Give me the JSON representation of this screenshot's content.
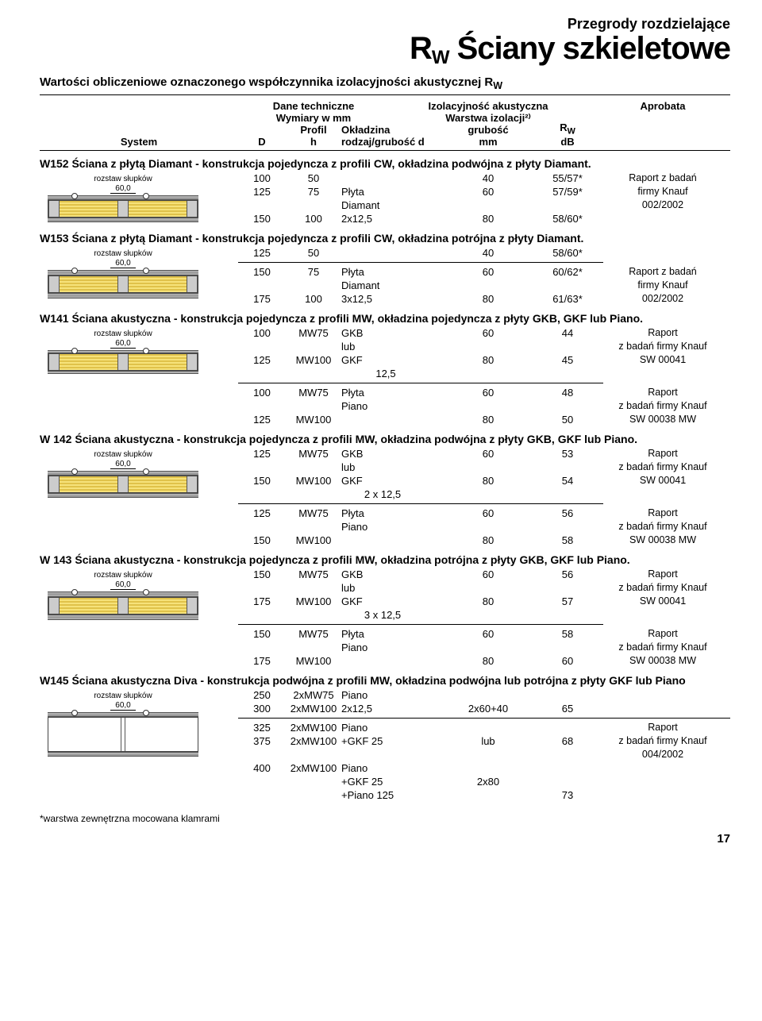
{
  "header": {
    "category": "Przegrody rozdzielające",
    "title_prefix": "R",
    "title_sub": "W",
    "title_main": " Ściany szkieletowe"
  },
  "intro": "Wartości obliczeniowe oznaczonego współczynnika izolacyjności akustycznej R",
  "intro_sub": "W",
  "columns": {
    "system": "System",
    "dane": "Dane techniczne",
    "izol": "Izolacyjność akustyczna",
    "apr": "Aprobata",
    "wymiary": "Wymiary w mm",
    "warstwa": "Warstwa izolacji²⁾",
    "D": "D",
    "profil": "Profil",
    "h": "h",
    "okladzina": "Okładzina",
    "rodzaj": "rodzaj/grubość d",
    "grubosc": "grubość",
    "mm": "mm",
    "rw": "R",
    "rw_sub": "W",
    "db": "dB"
  },
  "diag": {
    "rozstaw": "rozstaw słupków",
    "sixty": "60,0"
  },
  "sections": [
    {
      "title": "W152 Ściana z płytą Diamant - konstrukcja pojedyncza z profili CW, okładzina podwójna z płyty Diamant.",
      "skin": 2,
      "rows": [
        {
          "D": "100",
          "h": "50",
          "sh": "",
          "mm": "40",
          "rw": "55/57*",
          "ap": "Raport z badań"
        },
        {
          "D": "125",
          "h": "75",
          "sh": "Płyta",
          "mm": "60",
          "rw": "57/59*",
          "ap": "firmy Knauf"
        },
        {
          "D": "",
          "h": "",
          "sh": "Diamant",
          "mm": "",
          "rw": "",
          "ap": "002/2002"
        },
        {
          "D": "150",
          "h": "100",
          "sh": "2x12,5",
          "mm": "80",
          "rw": "58/60*",
          "ap": ""
        }
      ]
    },
    {
      "title": "W153 Ściana z płytą Diamant - konstrukcja pojedyncza z profili CW, okładzina potrójna z płyty Diamant.",
      "skin": 3,
      "rows": [
        {
          "D": "125",
          "h": "50",
          "sh": "",
          "mm": "40",
          "rw": "58/60*",
          "ap": ""
        },
        {
          "sep": true
        },
        {
          "D": "150",
          "h": "75",
          "sh": "Płyta",
          "mm": "60",
          "rw": "60/62*",
          "ap": "Raport z badań"
        },
        {
          "D": "",
          "h": "",
          "sh": "Diamant",
          "mm": "",
          "rw": "",
          "ap": "firmy Knauf"
        },
        {
          "D": "175",
          "h": "100",
          "sh": "3x12,5",
          "mm": "80",
          "rw": "61/63*",
          "ap": "002/2002"
        }
      ]
    },
    {
      "title": "W141 Ściana akustyczna - konstrukcja pojedyncza z profili MW, okładzina pojedyncza z płyty GKB, GKF lub Piano.",
      "skin": 1,
      "rows": [
        {
          "D": "100",
          "h": "MW75",
          "sh": "GKB",
          "mm": "60",
          "rw": "44",
          "ap": "Raport"
        },
        {
          "D": "",
          "h": "",
          "sh": "lub",
          "mm": "",
          "rw": "",
          "ap": "z badań firmy Knauf"
        },
        {
          "D": "125",
          "h": "MW100",
          "sh": "GKF",
          "mm": "80",
          "rw": "45",
          "ap": "SW 00041"
        },
        {
          "D": "",
          "h": "",
          "sh": "            12,5",
          "mm": "",
          "rw": "",
          "ap": ""
        },
        {
          "sep": true
        },
        {
          "D": "100",
          "h": "MW75",
          "sh": "Płyta",
          "mm": "60",
          "rw": "48",
          "ap": "Raport"
        },
        {
          "D": "",
          "h": "",
          "sh": "Piano",
          "mm": "",
          "rw": "",
          "ap": "z badań firmy Knauf"
        },
        {
          "D": "125",
          "h": "MW100",
          "sh": "",
          "mm": "80",
          "rw": "50",
          "ap": "SW 00038 MW"
        }
      ]
    },
    {
      "title": "W 142 Ściana akustyczna - konstrukcja pojedyncza z profili MW, okładzina podwójna z płyty GKB, GKF lub Piano.",
      "skin": 2,
      "rows": [
        {
          "D": "125",
          "h": "MW75",
          "sh": "GKB",
          "mm": "60",
          "rw": "53",
          "ap": "Raport"
        },
        {
          "D": "",
          "h": "",
          "sh": "lub",
          "mm": "",
          "rw": "",
          "ap": "z badań firmy Knauf"
        },
        {
          "D": "150",
          "h": "MW100",
          "sh": "GKF",
          "mm": "80",
          "rw": "54",
          "ap": "SW 00041"
        },
        {
          "D": "",
          "h": "",
          "sh": "        2 x 12,5",
          "mm": "",
          "rw": "",
          "ap": ""
        },
        {
          "sep": true
        },
        {
          "D": "125",
          "h": "MW75",
          "sh": "Płyta",
          "mm": "60",
          "rw": "56",
          "ap": "Raport"
        },
        {
          "D": "",
          "h": "",
          "sh": "Piano",
          "mm": "",
          "rw": "",
          "ap": "z badań firmy Knauf"
        },
        {
          "D": "150",
          "h": "MW100",
          "sh": "",
          "mm": "80",
          "rw": "58",
          "ap": "SW 00038 MW"
        }
      ]
    },
    {
      "title": "W 143 Ściana akustyczna - konstrukcja pojedyncza z profili MW, okładzina potrójna z płyty GKB, GKF lub Piano.",
      "skin": 3,
      "rows": [
        {
          "D": "150",
          "h": "MW75",
          "sh": "GKB",
          "mm": "60",
          "rw": "56",
          "ap": "Raport"
        },
        {
          "D": "",
          "h": "",
          "sh": "lub",
          "mm": "",
          "rw": "",
          "ap": "z badań firmy Knauf"
        },
        {
          "D": "175",
          "h": "MW100",
          "sh": "GKF",
          "mm": "80",
          "rw": "57",
          "ap": "SW 00041"
        },
        {
          "D": "",
          "h": "",
          "sh": "        3 x 12,5",
          "mm": "",
          "rw": "",
          "ap": ""
        },
        {
          "sep": true
        },
        {
          "D": "150",
          "h": "MW75",
          "sh": "Płyta",
          "mm": "60",
          "rw": "58",
          "ap": "Raport"
        },
        {
          "D": "",
          "h": "",
          "sh": "Piano",
          "mm": "",
          "rw": "",
          "ap": "z badań firmy Knauf"
        },
        {
          "D": "175",
          "h": "MW100",
          "sh": "",
          "mm": "80",
          "rw": "60",
          "ap": "SW 00038 MW"
        }
      ]
    },
    {
      "title": "W145 Ściana akustyczna Diva - konstrukcja podwójna z profili MW, okładzina podwójna lub potrójna z płyty GKF lub Piano",
      "skin": 2,
      "double": true,
      "rows": [
        {
          "D": "250",
          "h": "2xMW75",
          "sh": "Piano",
          "mm": "",
          "rw": "",
          "ap": ""
        },
        {
          "D": "300",
          "h": "2xMW100",
          "sh": "2x12,5",
          "mm": "2x60+40",
          "rw": "65",
          "ap": ""
        },
        {
          "sep": true,
          "wide": true
        },
        {
          "D": "325",
          "h": "2xMW100",
          "sh": "Piano",
          "mm": "",
          "rw": "",
          "ap": "Raport"
        },
        {
          "D": "375",
          "h": "2xMW100",
          "sh": "+GKF 25",
          "mm": "lub",
          "rw": "68",
          "ap": "z badań firmy Knauf"
        },
        {
          "D": "",
          "h": "",
          "sh": "",
          "mm": "",
          "rw": "",
          "ap": "004/2002"
        },
        {
          "D": "400",
          "h": "2xMW100",
          "sh": "Piano",
          "mm": "",
          "rw": "",
          "ap": ""
        },
        {
          "D": "",
          "h": "",
          "sh": "+GKF 25",
          "mm": "2x80",
          "rw": "",
          "ap": ""
        },
        {
          "D": "",
          "h": "",
          "sh": "+Piano 125",
          "mm": "",
          "rw": "73",
          "ap": ""
        }
      ]
    }
  ],
  "footnote": "*warstwa zewnętrzna mocowana klamrami",
  "pagenum": "17"
}
